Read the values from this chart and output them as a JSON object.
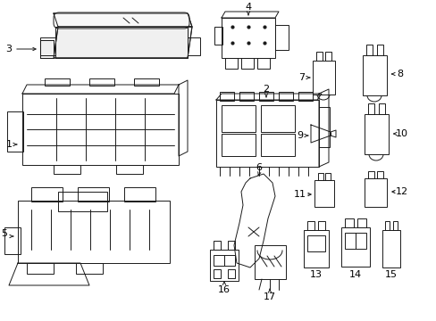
{
  "bg_color": "#ffffff",
  "line_color": "#1a1a1a",
  "lw": 0.7,
  "fig_width": 4.89,
  "fig_height": 3.6
}
